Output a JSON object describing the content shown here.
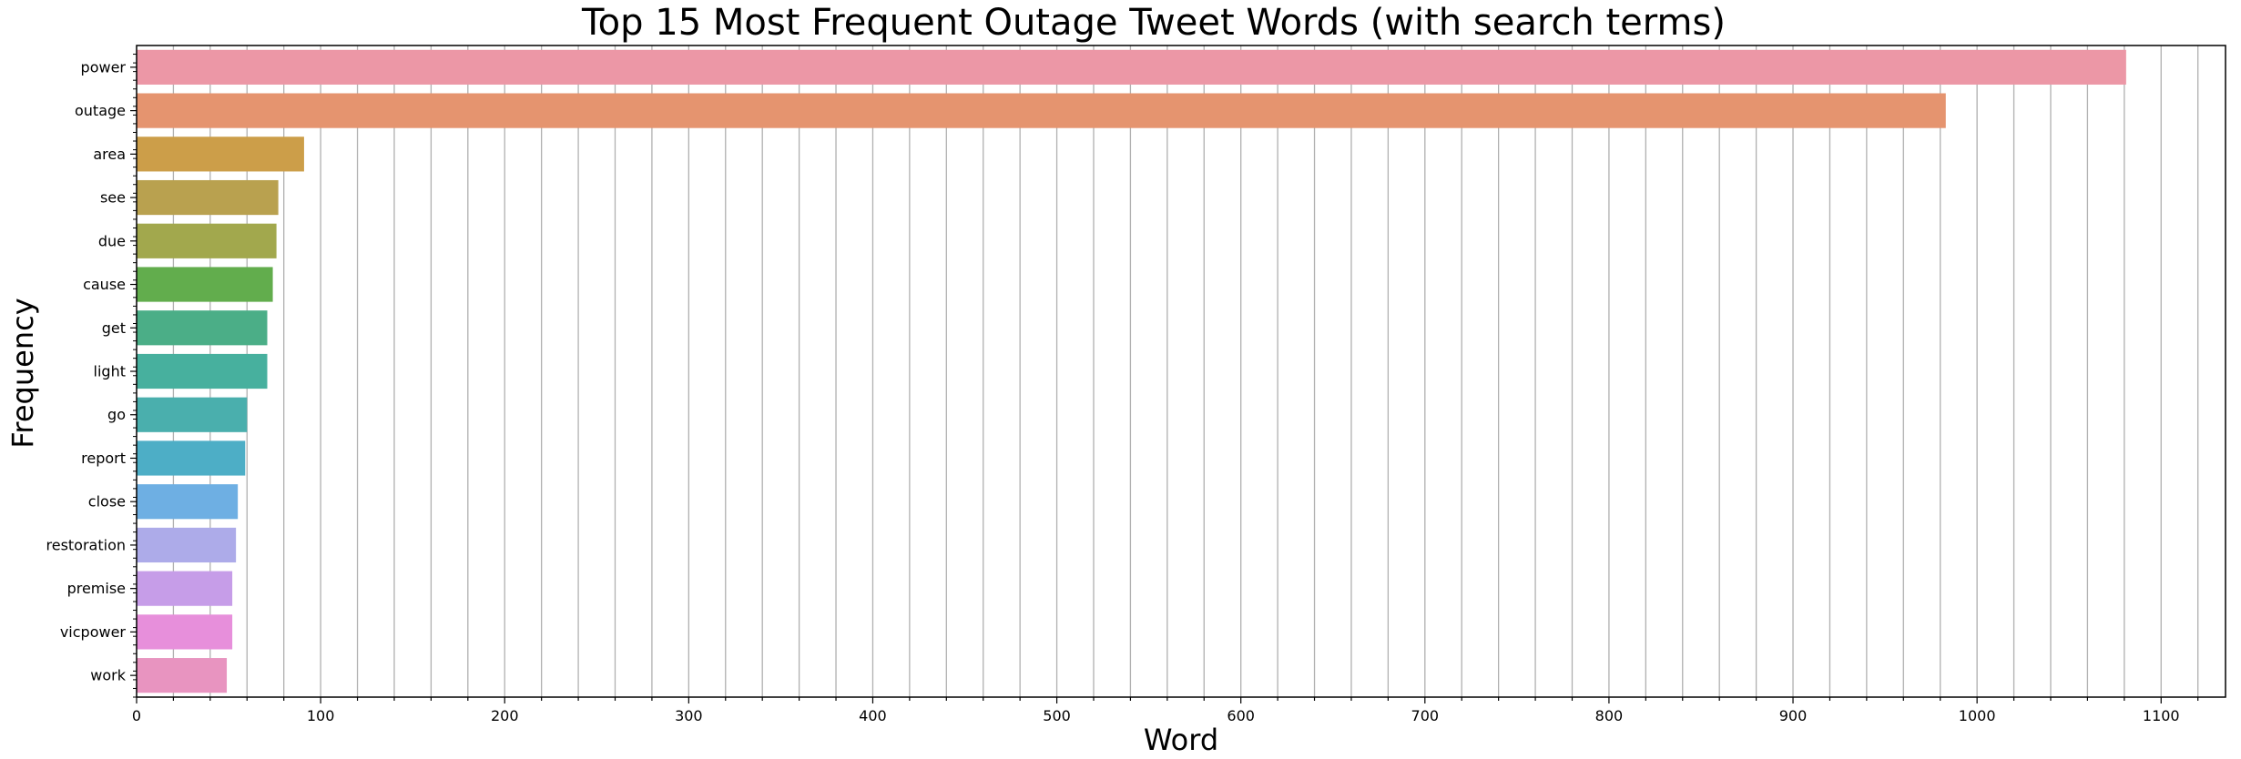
{
  "chart_data": {
    "type": "bar",
    "orientation": "horizontal",
    "title": "Top 15 Most Frequent Outage Tweet Words (with search terms)",
    "xlabel": "Word",
    "ylabel": "Frequency",
    "xlim": [
      0,
      1135
    ],
    "xticks": [
      0,
      100,
      200,
      300,
      400,
      500,
      600,
      700,
      800,
      900,
      1000,
      1100
    ],
    "grid": "vertical",
    "categories": [
      "power",
      "outage",
      "area",
      "see",
      "due",
      "cause",
      "get",
      "light",
      "go",
      "report",
      "close",
      "restoration",
      "premise",
      "vicpower",
      "work"
    ],
    "values": [
      1081,
      983,
      91,
      77,
      76,
      74,
      71,
      71,
      60,
      59,
      55,
      54,
      52,
      52,
      49
    ],
    "colors": [
      "#ec97a6",
      "#e5946f",
      "#cc9e49",
      "#b9a14f",
      "#a2a84d",
      "#62ad4d",
      "#4bae87",
      "#47b09e",
      "#4aafad",
      "#4daec6",
      "#6eafe3",
      "#adabe9",
      "#c69de8",
      "#e78fdb",
      "#e894c0"
    ]
  }
}
